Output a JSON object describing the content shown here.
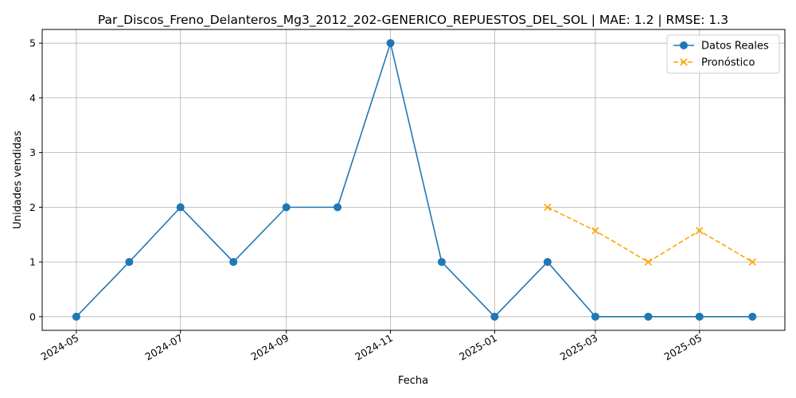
{
  "chart_data": {
    "type": "line",
    "title": "Par_Discos_Freno_Delanteros_Mg3_2012_202-GENERICO_REPUESTOS_DEL_SOL | MAE: 1.2 | RMSE: 1.3",
    "xlabel": "Fecha",
    "ylabel": "Unidades vendidas",
    "ylim": [
      -0.25,
      5.25
    ],
    "xlim": [
      "2024-04-11",
      "2025-06-20"
    ],
    "x_ticks": [
      "2024-05",
      "2024-07",
      "2024-09",
      "2024-11",
      "2025-01",
      "2025-03",
      "2025-05"
    ],
    "y_ticks": [
      "0",
      "1",
      "2",
      "3",
      "4",
      "5"
    ],
    "grid": true,
    "legend_position": "top-right",
    "series": [
      {
        "name": "Datos Reales",
        "color": "#1f77b4",
        "line_style": "solid",
        "marker": "circle",
        "points": [
          {
            "x": "2024-05-01",
            "y": 0
          },
          {
            "x": "2024-06-01",
            "y": 1
          },
          {
            "x": "2024-07-01",
            "y": 2
          },
          {
            "x": "2024-08-01",
            "y": 1
          },
          {
            "x": "2024-09-01",
            "y": 2
          },
          {
            "x": "2024-10-01",
            "y": 2
          },
          {
            "x": "2024-11-01",
            "y": 5
          },
          {
            "x": "2024-12-01",
            "y": 1
          },
          {
            "x": "2025-01-01",
            "y": 0
          },
          {
            "x": "2025-02-01",
            "y": 1
          },
          {
            "x": "2025-03-01",
            "y": 0
          },
          {
            "x": "2025-04-01",
            "y": 0
          },
          {
            "x": "2025-05-01",
            "y": 0
          },
          {
            "x": "2025-06-01",
            "y": 0
          }
        ]
      },
      {
        "name": "Pronóstico",
        "color": "#ffa500",
        "line_style": "dashed",
        "marker": "x",
        "points": [
          {
            "x": "2025-02-01",
            "y": 2.0
          },
          {
            "x": "2025-03-01",
            "y": 1.57
          },
          {
            "x": "2025-04-01",
            "y": 1.0
          },
          {
            "x": "2025-05-01",
            "y": 1.57
          },
          {
            "x": "2025-06-01",
            "y": 1.0
          }
        ]
      }
    ]
  }
}
